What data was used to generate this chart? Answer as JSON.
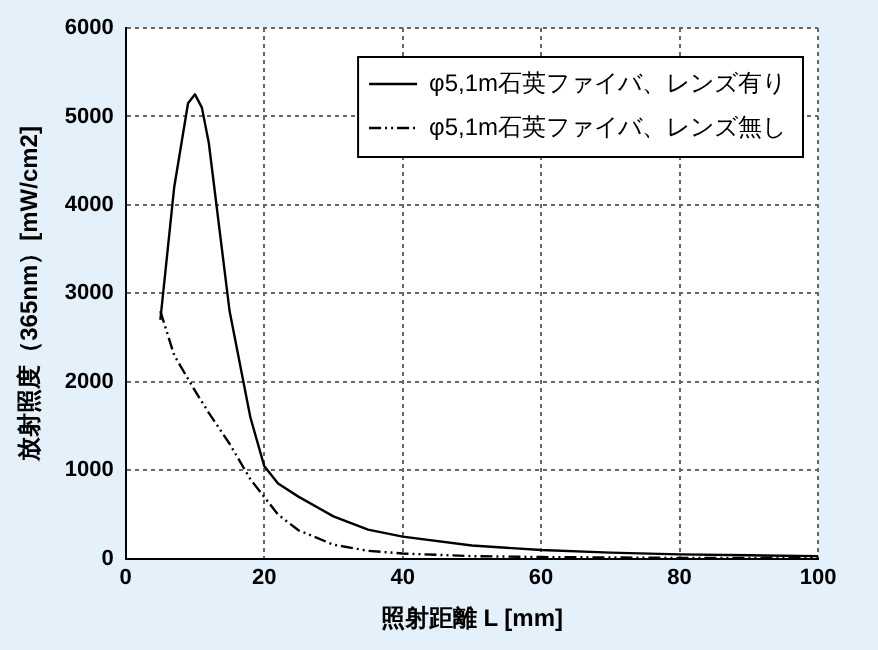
{
  "chart_data": {
    "type": "line",
    "xlabel": "照射距離 L [mm]",
    "ylabel": "放射照度（365nm）[mW/cm2]",
    "xlim": [
      0,
      100
    ],
    "xticks": [
      0,
      20,
      40,
      60,
      80,
      100
    ],
    "ylim": [
      0,
      6000
    ],
    "yticks": [
      0,
      1000,
      2000,
      3000,
      4000,
      5000,
      6000
    ],
    "grid": true,
    "legend": "top right",
    "marker": "none",
    "series": [
      {
        "name": "φ5,1m石英ファイバ、レンズ有り",
        "color": "#000000",
        "line_style": "solid",
        "x": [
          5,
          7,
          9,
          10,
          11,
          12,
          15,
          18,
          20,
          22,
          25,
          30,
          35,
          40,
          50,
          60,
          70,
          80,
          90,
          100
        ],
        "values": [
          2700,
          4200,
          5150,
          5250,
          5100,
          4700,
          2800,
          1600,
          1050,
          850,
          700,
          480,
          330,
          250,
          150,
          100,
          70,
          50,
          40,
          30
        ]
      },
      {
        "name": "φ5,1m石英ファイバ、レンズ無し",
        "color": "#000000",
        "line_style": "dashed",
        "x": [
          5,
          7,
          10,
          12,
          15,
          18,
          20,
          22,
          25,
          30,
          35,
          40,
          50,
          60,
          80,
          100
        ],
        "values": [
          2800,
          2300,
          1900,
          1650,
          1300,
          900,
          700,
          500,
          320,
          160,
          90,
          60,
          30,
          20,
          10,
          10
        ]
      }
    ]
  }
}
